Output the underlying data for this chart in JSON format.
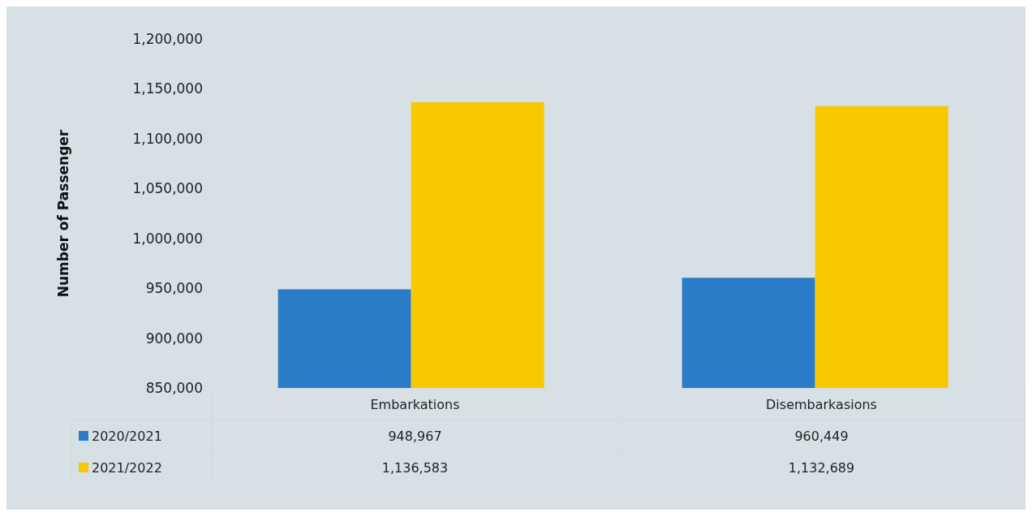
{
  "chart_data": {
    "type": "bar",
    "ylabel": "Number of Passenger",
    "categories": [
      "Embarkations",
      "Disembarkasions"
    ],
    "series": [
      {
        "name": "2020/2021",
        "color": "#2b7cc8",
        "values": [
          948967,
          960449
        ],
        "value_labels": [
          "948,967",
          "960,449"
        ]
      },
      {
        "name": "2021/2022",
        "color": "#f8c800",
        "values": [
          1136583,
          1132689
        ],
        "value_labels": [
          "1,136,583",
          "1,132,689"
        ]
      }
    ],
    "ylim": [
      850000,
      1200000
    ],
    "yticks": [
      {
        "value": 850000,
        "label": "850,000"
      },
      {
        "value": 900000,
        "label": "900,000"
      },
      {
        "value": 950000,
        "label": "950,000"
      },
      {
        "value": 1000000,
        "label": "1,000,000"
      },
      {
        "value": 1050000,
        "label": "1,050,000"
      },
      {
        "value": 1100000,
        "label": "1,100,000"
      },
      {
        "value": 1150000,
        "label": "1,150,000"
      },
      {
        "value": 1200000,
        "label": "1,200,000"
      }
    ],
    "grid": false,
    "legend": "bottom"
  }
}
